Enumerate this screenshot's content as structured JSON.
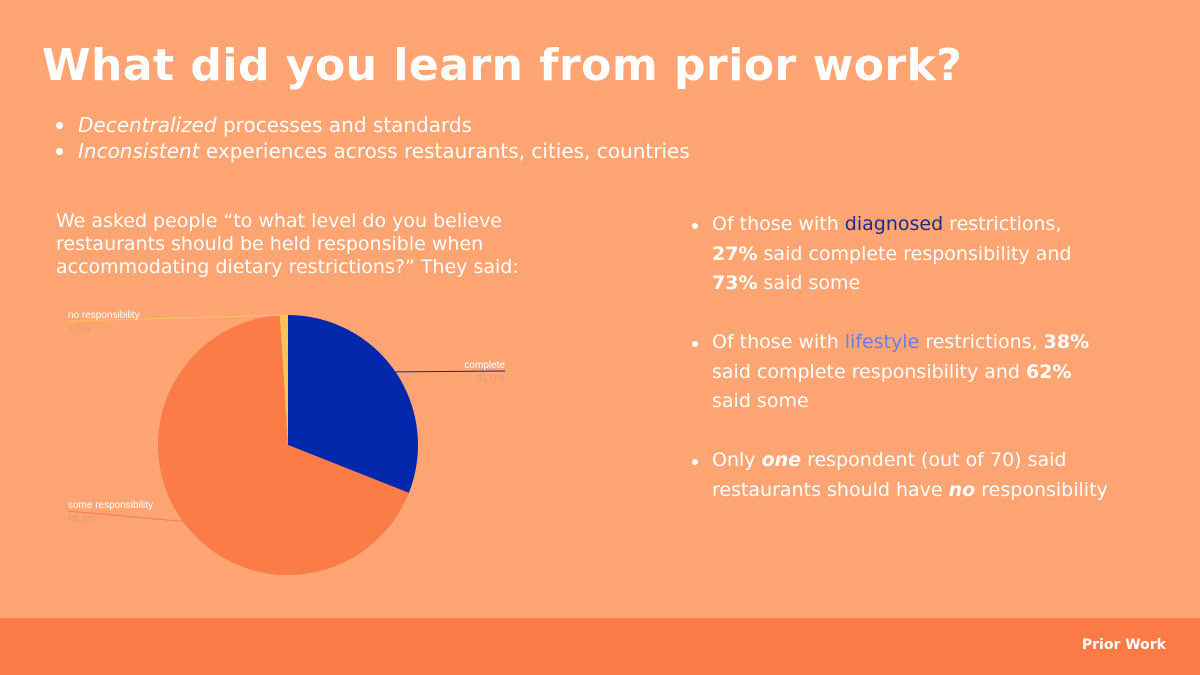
{
  "title": "What did you learn from prior work?",
  "intro_bullets": [
    {
      "emph": "Decentralized",
      "rest": " processes and standards"
    },
    {
      "emph": "Inconsistent",
      "rest": " experiences across restaurants, cities, countries"
    }
  ],
  "question": "We asked people “to what level do you believe restaurants should be held responsible when accommodating dietary restrictions?” They said:",
  "findings": [
    {
      "p1": "Of those with ",
      "keyword": "diagnosed",
      "p2": " restrictions, ",
      "n1": "27%",
      "p3": " said complete responsibility and ",
      "n2": "73%",
      "p4": " said some"
    },
    {
      "p1": "Of those with ",
      "keyword": "lifestyle",
      "p2": " restrictions, ",
      "n1": "38%",
      "p3": " said complete responsibility and ",
      "n2": "62%",
      "p4": " said some"
    },
    {
      "p1": "Only ",
      "e1": "one",
      "p2": " respondent (out of 70) said restaurants should have ",
      "e2": "no",
      "p3": " responsibility"
    }
  ],
  "footer": {
    "label": "Prior Work"
  },
  "colors": {
    "background": "#FFA574",
    "footer": "#FB7A45",
    "complete": "#0327AA",
    "some": "#FB7C47",
    "none": "#F9C35A",
    "diagnosed_keyword": "#1B2C8F",
    "lifestyle_keyword": "#6B7FE0"
  },
  "chart_data": {
    "type": "pie",
    "title": "",
    "slices": [
      {
        "label": "complete",
        "value": 31.0,
        "value_label": "31.0%",
        "color": "#0327AA"
      },
      {
        "label": "some responsibility",
        "value": 68.0,
        "value_label": "68.0%",
        "color": "#FB7C47"
      },
      {
        "label": "no responsibility",
        "value": 1.0,
        "value_label": "1.0%",
        "color": "#F9C35A"
      }
    ]
  }
}
